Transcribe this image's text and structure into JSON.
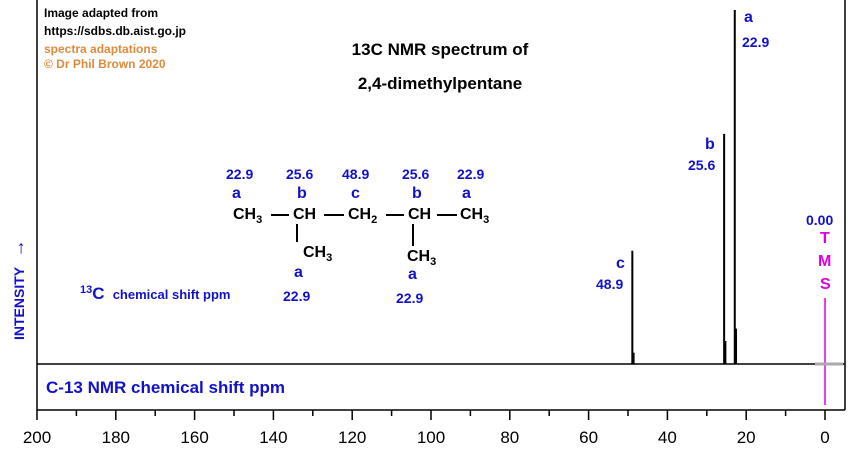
{
  "credits": {
    "line1": "Image adapted from",
    "line2": "https://sdbs.db.aist.go.jp",
    "line3": "spectra adaptations",
    "line4": "© Dr Phil Brown 2020"
  },
  "title": {
    "line1": "13C NMR spectrum of",
    "line2": "2,4-dimethylpentane"
  },
  "y_axis_label": "INTENSITY",
  "arrow_glyph": "→",
  "axis_caption": "C-13  NMR chemical shift  ppm",
  "structure": {
    "shift_labels": [
      "22.9",
      "25.6",
      "48.9",
      "25.6",
      "22.9"
    ],
    "carbon_letters": [
      "a",
      "b",
      "c",
      "b",
      "a"
    ],
    "chain": {
      "c1": "CH",
      "c1_sub": "3",
      "c2": "CH",
      "c3": "CH",
      "c3_sub": "2",
      "c4": "CH",
      "c5": "CH",
      "c5_sub": "3"
    },
    "branch": {
      "atom": "CH",
      "sub": "3",
      "letter": "a",
      "shift": "22.9"
    },
    "legend": {
      "sup": "13",
      "element": "C",
      "text": "chemical shift ppm"
    }
  },
  "tms": {
    "shift": "0.00",
    "letters": [
      "T",
      "M",
      "S"
    ]
  },
  "colors": {
    "label_blue": "#1111cc",
    "tms_magenta": "#e000e0",
    "credit_orange": "#e08a3c",
    "trace": "#000000"
  },
  "chart_data": {
    "type": "line",
    "xlabel": "C-13  NMR chemical shift  ppm",
    "ylabel": "INTENSITY",
    "xlim": [
      200,
      0
    ],
    "x_reversed": true,
    "ylim": [
      0,
      1
    ],
    "grid": false,
    "x_ticks": [
      200,
      180,
      160,
      140,
      120,
      100,
      80,
      60,
      40,
      20,
      0
    ],
    "peaks": [
      {
        "label": "c",
        "shift": "48.9",
        "x": 48.9,
        "y": 0.32
      },
      {
        "label": "b",
        "shift": "25.6",
        "x": 25.6,
        "y": 0.65
      },
      {
        "label": "a",
        "shift": "22.9",
        "x": 22.9,
        "y": 1.0
      }
    ],
    "reference": {
      "name": "TMS",
      "x": 0.0
    }
  }
}
